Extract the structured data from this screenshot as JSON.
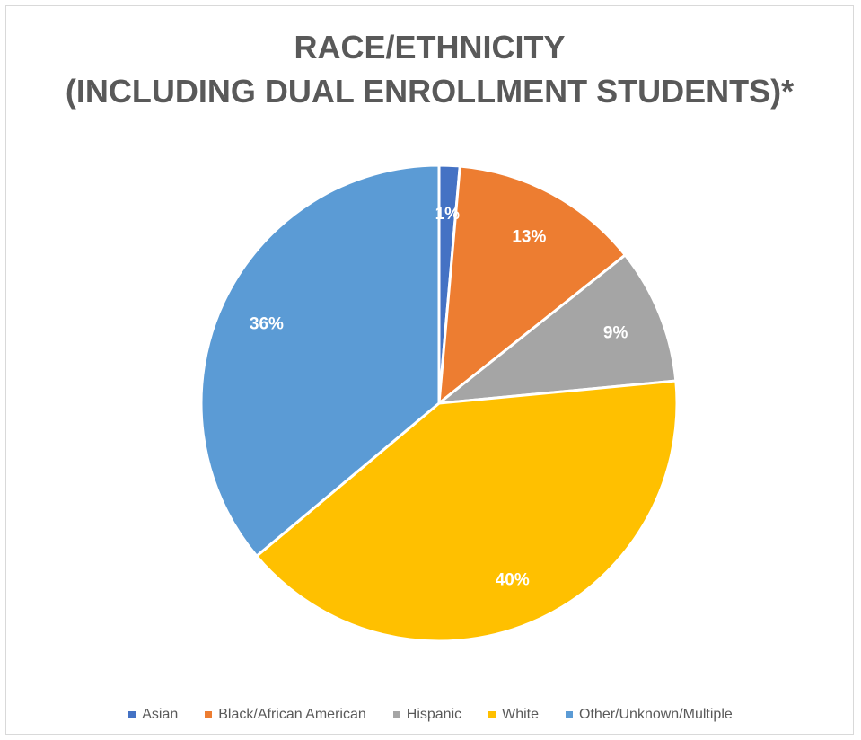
{
  "chart_data": {
    "type": "pie",
    "title": "RACE/ETHNICITY (INCLUDING DUAL ENROLLMENT STUDENTS)*",
    "title_lines": [
      "RACE/ETHNICITY",
      "(INCLUDING DUAL ENROLLMENT STUDENTS)*"
    ],
    "categories": [
      "Asian",
      "Black/African American",
      "Hispanic",
      "White",
      "Other/Unknown/Multiple"
    ],
    "values": [
      1.4,
      12.9,
      9.2,
      40.4,
      36.1
    ],
    "data_labels": [
      "1%",
      "13%",
      "9%",
      "40%",
      "36%"
    ],
    "colors": [
      "#4472C4",
      "#ED7D31",
      "#A5A5A5",
      "#FFC000",
      "#5B9BD5"
    ],
    "legend_position": "bottom",
    "start_angle": "12 o'clock",
    "direction": "clockwise"
  }
}
